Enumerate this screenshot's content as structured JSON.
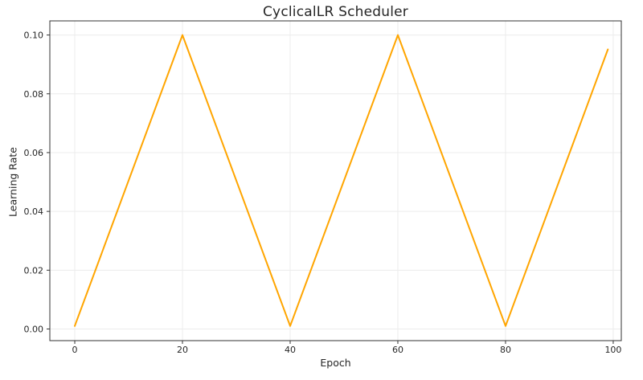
{
  "chart_data": {
    "type": "line",
    "title": "CyclicalLR Scheduler",
    "xlabel": "Epoch",
    "ylabel": "Learning Rate",
    "xlim": [
      -4.63,
      101.5
    ],
    "ylim": [
      -0.00396,
      0.1048
    ],
    "xticks": {
      "values": [
        0,
        20,
        40,
        60,
        80,
        100
      ],
      "labels": [
        "0",
        "20",
        "40",
        "60",
        "80",
        "100"
      ]
    },
    "yticks": {
      "values": [
        0.0,
        0.02,
        0.04,
        0.06,
        0.08,
        0.1
      ],
      "labels": [
        "0.00",
        "0.02",
        "0.04",
        "0.06",
        "0.08",
        "0.10"
      ]
    },
    "grid": true,
    "legend": false,
    "colors": {
      "line": "#FFA500",
      "grid": "#ececec",
      "spine": "#333333",
      "tick": "#333333",
      "text": "#262626",
      "background": "#ffffff"
    },
    "series": [
      {
        "name": "learning_rate",
        "color": "#FFA500",
        "line_width": 2,
        "points": [
          [
            0,
            0.001
          ],
          [
            20,
            0.1
          ],
          [
            40,
            0.001
          ],
          [
            60,
            0.1
          ],
          [
            80,
            0.001
          ],
          [
            99,
            0.0951
          ]
        ]
      }
    ]
  }
}
